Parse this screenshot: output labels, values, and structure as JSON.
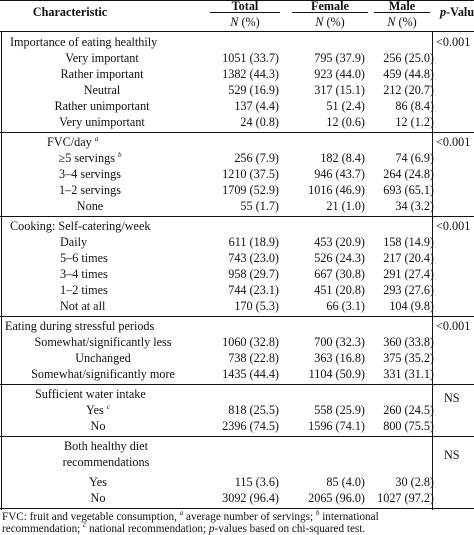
{
  "header": {
    "characteristic": "Characteristic",
    "total": "Total",
    "female": "Female",
    "male": "Male",
    "p_value": "p-Value",
    "n_pct": "N (%)"
  },
  "sections": [
    {
      "title": "Importance of eating healthily",
      "p": "<0.001",
      "rows": [
        {
          "label": "Very important",
          "total": "1051 (33.7)",
          "female": "795 (37.9)",
          "male": "256 (25.0)"
        },
        {
          "label": "Rather important",
          "total": "1382 (44.3)",
          "female": "923 (44.0)",
          "male": "459 (44.8)"
        },
        {
          "label": "Neutral",
          "total": "529 (16.9)",
          "female": "317 (15.1)",
          "male": "212 (20.7)"
        },
        {
          "label": "Rather unimportant",
          "total": "137 (4.4)",
          "female": "51 (2.4)",
          "male": "86 (8.4)"
        },
        {
          "label": "Very unimportant",
          "total": "24 (0.8)",
          "female": "12 (0.6)",
          "male": "12 (1.2)"
        }
      ]
    },
    {
      "title": "FVC/day",
      "title_sup": "a",
      "p": "<0.001",
      "rows": [
        {
          "label": "≥5 servings",
          "label_sup": "b",
          "total": "256 (7.9)",
          "female": "182 (8.4)",
          "male": "74 (6.9)"
        },
        {
          "label": "3–4 servings",
          "total": "1210 (37.5)",
          "female": "946 (43.7)",
          "male": "264 (24.8)"
        },
        {
          "label": "1–2 servings",
          "total": "1709 (52.9)",
          "female": "1016 (46.9)",
          "male": "693 (65.1)"
        },
        {
          "label": "None",
          "total": "55 (1.7)",
          "female": "21 (1.0)",
          "male": "34 (3.2)"
        }
      ]
    },
    {
      "title": "Cooking: Self-catering/week",
      "p": "<0.001",
      "rows": [
        {
          "label": "Daily",
          "total": "611 (18.9)",
          "female": "453 (20.9)",
          "male": "158 (14.9)"
        },
        {
          "label": "5–6 times",
          "total": "743 (23.0)",
          "female": "526 (24.3)",
          "male": "217 (20.4)"
        },
        {
          "label": "3–4 times",
          "total": "958 (29.7)",
          "female": "667 (30.8)",
          "male": "291 (27.4)"
        },
        {
          "label": "1–2 times",
          "total": "744 (23.1)",
          "female": "451 (20.8)",
          "male": "293 (27.6)"
        },
        {
          "label": "Not at all",
          "total": "170 (5.3)",
          "female": "66 (3.1)",
          "male": "104 (9.8)"
        }
      ]
    },
    {
      "title": "Eating during stressful periods",
      "p": "<0.001",
      "rows": [
        {
          "label": "Somewhat/significantly less",
          "total": "1060 (32.8)",
          "female": "700 (32.3)",
          "male": "360 (33.8)"
        },
        {
          "label": "Unchanged",
          "total": "738 (22.8)",
          "female": "363 (16.8)",
          "male": "375 (35.2)"
        },
        {
          "label": "Somewhat/significantly more",
          "total": "1435 (44.4)",
          "female": "1104 (50.9)",
          "male": "331 (31.1)"
        }
      ]
    },
    {
      "title": "Sufficient water intake",
      "p": "NS",
      "rows": [
        {
          "label": "Yes",
          "label_sup": "c",
          "total": "818 (25.5)",
          "female": "558 (25.9)",
          "male": "260 (24.5)"
        },
        {
          "label": "No",
          "total": "2396 (74.5)",
          "female": "1596 (74.1)",
          "male": "800 (75.5)"
        }
      ]
    },
    {
      "title_line1": "Both healthy diet",
      "title_line2": "recommendations",
      "p": "NS",
      "rows": [
        {
          "label": "Yes",
          "total": "115 (3.6)",
          "female": "85 (4.0)",
          "male": "30 (2.8)"
        },
        {
          "label": "No",
          "total": "3092 (96.4)",
          "female": "2065 (96.0)",
          "male": "1027 (97.2)"
        }
      ]
    }
  ],
  "footnote": {
    "fvc_abbr": "FVC",
    "fvc_text": ": fruit and vegetable consumption, ",
    "a_sup": "a",
    "a_text": " average number of servings; ",
    "b_sup": "b",
    "b_text": " international",
    "line2_a": "recommendation; ",
    "c_sup": "c",
    "line2_b": " national recommendation; ",
    "p_letter": "p",
    "line2_c": "-values based on chi-squared test."
  }
}
